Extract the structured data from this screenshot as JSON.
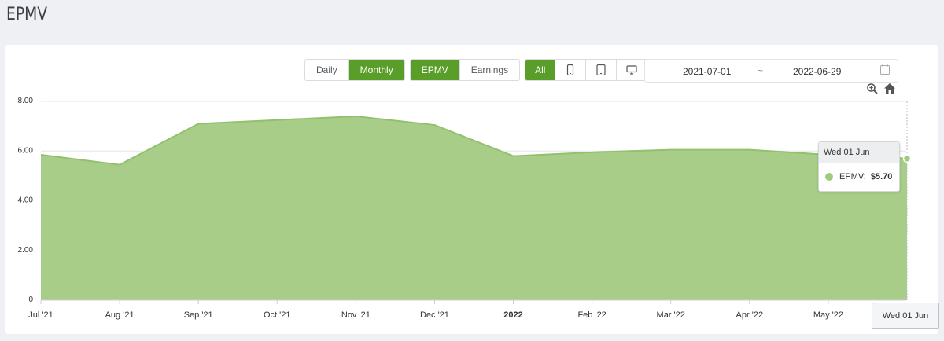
{
  "page": {
    "title": "EPMV"
  },
  "toolbar": {
    "period": [
      {
        "label": "Daily",
        "active": false
      },
      {
        "label": "Monthly",
        "active": true
      }
    ],
    "metric": [
      {
        "label": "EPMV",
        "active": true
      },
      {
        "label": "Earnings",
        "active": false
      }
    ],
    "device": [
      {
        "label": "All",
        "active": true
      },
      {
        "icon": "mobile-icon",
        "active": false
      },
      {
        "icon": "tablet-icon",
        "active": false
      },
      {
        "icon": "desktop-icon",
        "active": false
      }
    ],
    "date_start": "2021-07-01",
    "date_separator": "~",
    "date_end": "2022-06-29",
    "calendar_icon": "calendar-icon"
  },
  "chart_tools": {
    "zoom_icon": "zoom-in-icon",
    "home_icon": "home-icon"
  },
  "tooltip": {
    "date": "Wed 01 Jun",
    "series": "EPMV:",
    "value": "$5.70"
  },
  "crosshair_label": "Wed 01 Jun",
  "colors": {
    "accent": "#5a9e2a",
    "area": "#a8cd88",
    "line": "#93c06d"
  },
  "chart_data": {
    "type": "area",
    "title": "",
    "xlabel": "",
    "ylabel": "",
    "ylim": [
      0,
      8
    ],
    "yticks": [
      "0",
      "2.00",
      "4.00",
      "6.00",
      "8.00"
    ],
    "ytick_values": [
      0,
      2,
      4,
      6,
      8
    ],
    "categories": [
      "Jul '21",
      "Aug '21",
      "Sep '21",
      "Oct '21",
      "Nov '21",
      "Dec '21",
      "2022",
      "Feb '22",
      "Mar '22",
      "Apr '22",
      "May '22",
      "Jun '22"
    ],
    "tick_labels": [
      "Jul '21",
      "Aug '21",
      "Sep '21",
      "Oct '21",
      "Nov '21",
      "Dec '21",
      "2022",
      "Feb '22",
      "Mar '22",
      "Apr '22",
      "May '22"
    ],
    "bold_ticks": [
      "2022"
    ],
    "series": [
      {
        "values": [
          5.85,
          5.45,
          7.1,
          7.25,
          7.4,
          7.05,
          5.8,
          5.95,
          6.05,
          6.05,
          5.85,
          5.7
        ]
      }
    ],
    "grid": true,
    "legend": "none"
  }
}
